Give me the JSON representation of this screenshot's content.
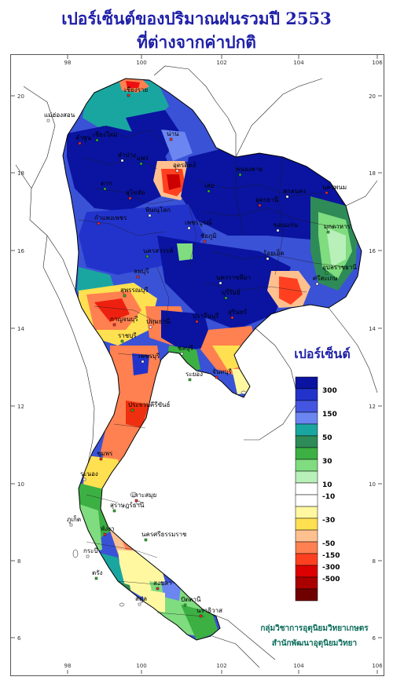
{
  "title": {
    "line1": "เปอร์เซ็นต์ของปริมาณฝนรวมปี 2553",
    "line2": "ที่ต่างจากค่าปกติ"
  },
  "axes": {
    "longitude_ticks": [
      "98",
      "100",
      "102",
      "104",
      "106"
    ],
    "latitude_ticks": [
      "20",
      "18",
      "16",
      "14",
      "12",
      "10",
      "8",
      "6"
    ]
  },
  "legend": {
    "title": "เปอร์เซ็นต์",
    "labels": [
      "300",
      "150",
      "50",
      "30",
      "10",
      "-10",
      "-30",
      "-50",
      "-150",
      "-300",
      "-500"
    ],
    "colors": [
      "#0a14a0",
      "#2233cc",
      "#4455e0",
      "#6b86f0",
      "#1aa6a0",
      "#2e8b57",
      "#3cb043",
      "#7fdc7f",
      "#b9f0b9",
      "#ffffff",
      "#ffffff",
      "#fff8a0",
      "#ffe050",
      "#ffc090",
      "#ff8050",
      "#ff4020",
      "#dd0000",
      "#aa0000",
      "#700000"
    ]
  },
  "places": [
    {
      "name": "เชียงราย"
    },
    {
      "name": "แม่ฮ่องสอน"
    },
    {
      "name": "เชียงใหม่"
    },
    {
      "name": "ลำพูน"
    },
    {
      "name": "ลำปาง"
    },
    {
      "name": "แพร่"
    },
    {
      "name": "น่าน"
    },
    {
      "name": "อุตรดิตถ์"
    },
    {
      "name": "ตาก"
    },
    {
      "name": "สุโขทัย"
    },
    {
      "name": "พิษณุโลก"
    },
    {
      "name": "หนองคาย"
    },
    {
      "name": "นครพนม"
    },
    {
      "name": "สกลนคร"
    },
    {
      "name": "เลย"
    },
    {
      "name": "อุดรธานี"
    },
    {
      "name": "ขอนแก่น"
    },
    {
      "name": "มุกดาหาร"
    },
    {
      "name": "กำแพงเพชร"
    },
    {
      "name": "เพชรบูรณ์"
    },
    {
      "name": "นครสวรรค์"
    },
    {
      "name": "ชัยภูมิ"
    },
    {
      "name": "ร้อยเอ็ด"
    },
    {
      "name": "อุบลราชธานี"
    },
    {
      "name": "ลพบุรี"
    },
    {
      "name": "นครราชสีมา"
    },
    {
      "name": "บุรีรัมย์"
    },
    {
      "name": "สุรินทร์"
    },
    {
      "name": "ศรีสะเกษ"
    },
    {
      "name": "สุพรรณบุรี"
    },
    {
      "name": "กาญจนบุรี"
    },
    {
      "name": "ปทุมธานี"
    },
    {
      "name": "ราชบุรี"
    },
    {
      "name": "ปราจีนบุรี"
    },
    {
      "name": "ชลบุรี"
    },
    {
      "name": "ระยอง"
    },
    {
      "name": "จันทบุรี"
    },
    {
      "name": "เพชรบุรี"
    },
    {
      "name": "ประจวบคีรีขันธ์"
    },
    {
      "name": "ชุมพร"
    },
    {
      "name": "ระนอง"
    },
    {
      "name": "สุราษฎร์ธานี"
    },
    {
      "name": "เกาะสมุย"
    },
    {
      "name": "ภูเก็ต"
    },
    {
      "name": "นครศรีธรรมราช"
    },
    {
      "name": "พังงา"
    },
    {
      "name": "กระบี่"
    },
    {
      "name": "ตรัง"
    },
    {
      "name": "สงขลา"
    },
    {
      "name": "สตูล"
    },
    {
      "name": "ปัตตานี"
    },
    {
      "name": "นราธิวาส"
    }
  ],
  "credit": {
    "line1": "กลุ่มวิชาการอุตุนิยมวิทยาเกษตร",
    "line2": "สำนักพัฒนาอุตุนิยมวิทยา"
  }
}
